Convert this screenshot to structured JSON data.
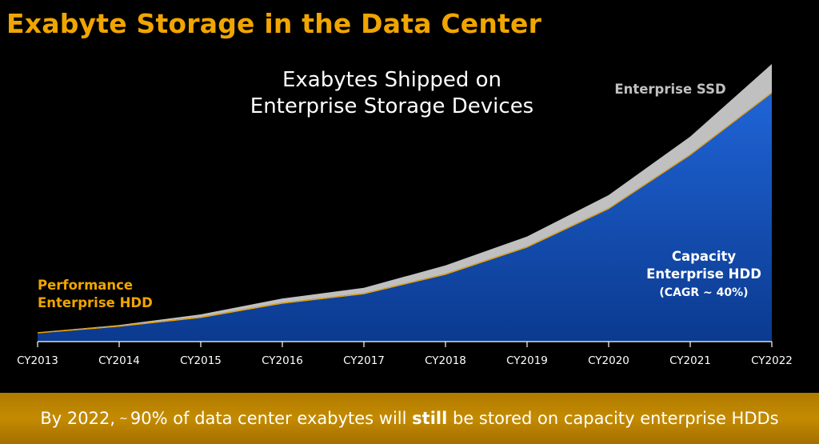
{
  "slide_title": "Exabyte Storage in the Data Center",
  "banner": {
    "prefix": "By 2022,",
    "approx": "~",
    "mid": "90% of data center exabytes will",
    "emphasis": "still",
    "suffix": "be stored on capacity enterprise HDDs"
  },
  "chart_data": {
    "type": "area",
    "stacked": true,
    "title_lines": [
      "Exabytes Shipped on",
      "Enterprise Storage Devices"
    ],
    "categories": [
      "CY2013",
      "CY2014",
      "CY2015",
      "CY2016",
      "CY2017",
      "CY2018",
      "CY2019",
      "CY2020",
      "CY2021",
      "CY2022"
    ],
    "series": [
      {
        "name_lines": [
          "Capacity",
          "Enterprise HDD",
          "(CAGR ~ 40%)"
        ],
        "color": "#1f5fc8",
        "values": [
          14,
          25,
          40,
          64,
          80,
          113,
          159,
          224,
          315,
          420
        ]
      },
      {
        "name_lines": [
          "Performance",
          "Enterprise HDD"
        ],
        "color": "#f0a500",
        "values": [
          2,
          2,
          2,
          2,
          2,
          2,
          2,
          2,
          2,
          2
        ]
      },
      {
        "name_lines": [
          "Enterprise SSD"
        ],
        "color": "#c0c0c0",
        "values": [
          0,
          1,
          4,
          7,
          9,
          14,
          17,
          22,
          30,
          48
        ]
      }
    ],
    "ylim": [
      0,
      474
    ],
    "grid": false,
    "legend": "inline-labels"
  },
  "colors": {
    "title": "#f0a500",
    "background": "#000000",
    "text": "#ffffff"
  }
}
